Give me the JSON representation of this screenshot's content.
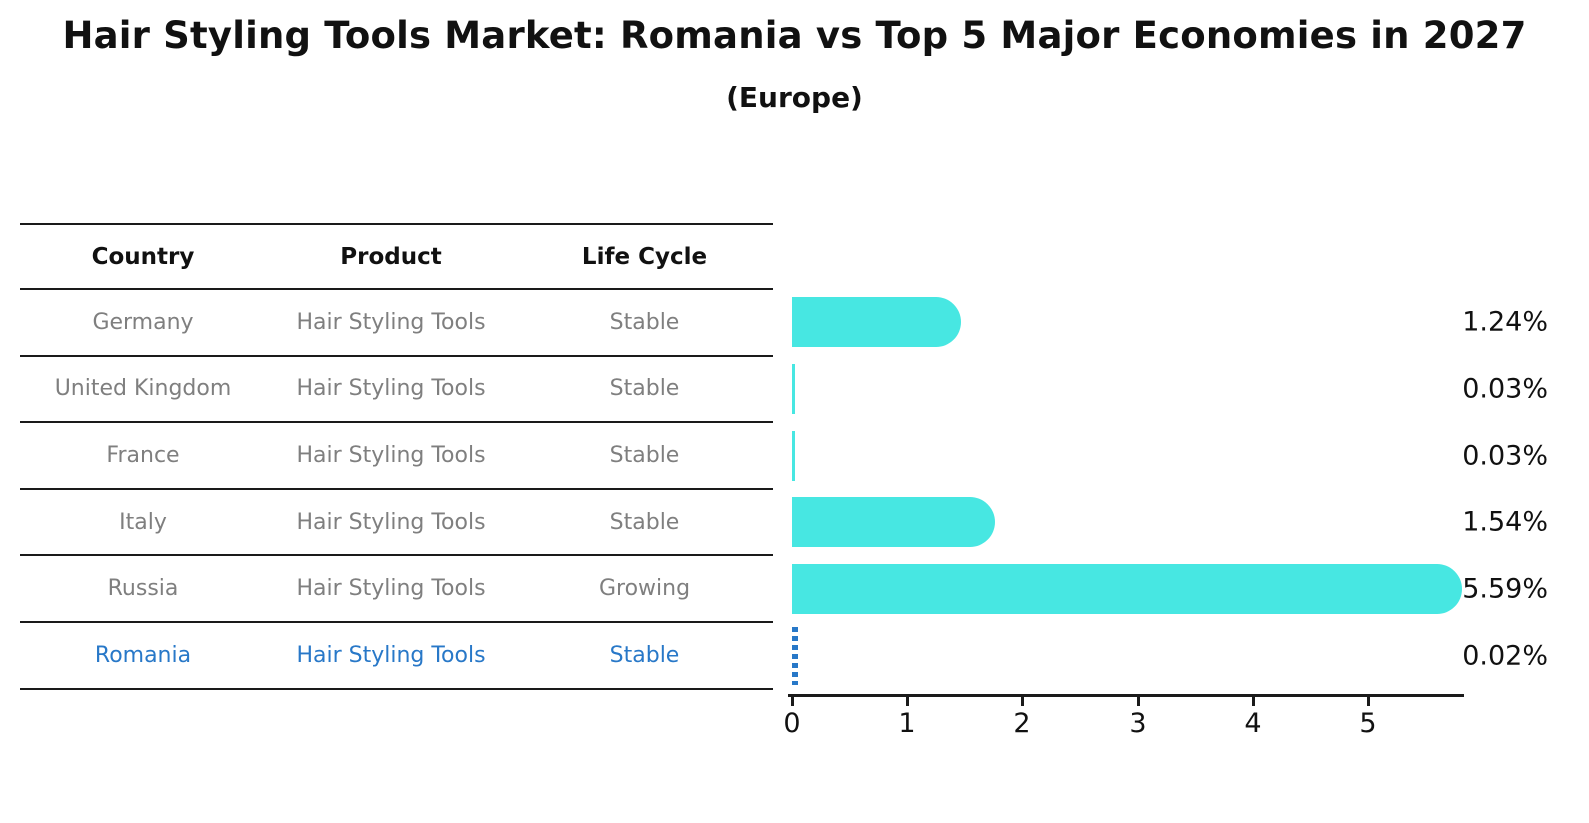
{
  "title": "Hair Styling Tools Market: Romania vs Top 5 Major Economies in 2027",
  "subtitle": "(Europe)",
  "colors": {
    "bar": "#47e7e2",
    "highlight": "#2878c8",
    "row_text": "#7f7f7f",
    "heading_text": "#111111",
    "line": "#1a1a1a"
  },
  "table": {
    "headers": [
      "Country",
      "Product",
      "Life Cycle"
    ],
    "rows": [
      {
        "country": "Germany",
        "product": "Hair Styling Tools",
        "life_cycle": "Stable"
      },
      {
        "country": "United Kingdom",
        "product": "Hair Styling Tools",
        "life_cycle": "Stable"
      },
      {
        "country": "France",
        "product": "Hair Styling Tools",
        "life_cycle": "Stable"
      },
      {
        "country": "Italy",
        "product": "Hair Styling Tools",
        "life_cycle": "Stable"
      },
      {
        "country": "Russia",
        "product": "Hair Styling Tools",
        "life_cycle": "Growing"
      },
      {
        "country": "Romania",
        "product": "Hair Styling Tools",
        "life_cycle": "Stable"
      }
    ]
  },
  "chart_data": {
    "type": "bar",
    "orientation": "horizontal",
    "title": "Hair Styling Tools Market: Romania vs Top 5 Major Economies in 2027 (Europe)",
    "categories": [
      "Germany",
      "United Kingdom",
      "France",
      "Italy",
      "Russia",
      "Romania"
    ],
    "values": [
      1.24,
      0.03,
      0.03,
      1.54,
      5.59,
      0.02
    ],
    "labels": [
      "1.24%",
      "0.03%",
      "0.03%",
      "1.54%",
      "5.59%",
      "0.02%"
    ],
    "xlabel": "",
    "ylabel": "",
    "xlim": [
      0,
      5.85
    ],
    "xticks": [
      "0",
      "1",
      "2",
      "3",
      "4",
      "5"
    ],
    "grid": false,
    "legend": false,
    "highlight_index": 5,
    "highlight_style": "dashed-blue"
  }
}
